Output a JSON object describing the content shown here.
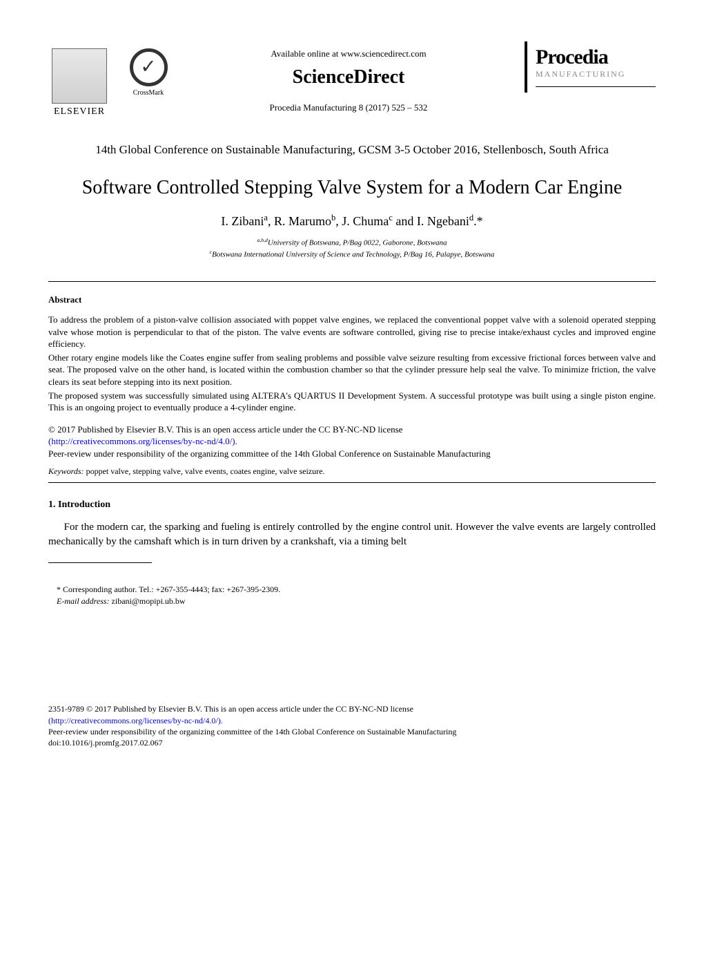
{
  "header": {
    "elsevier_label": "ELSEVIER",
    "crossmark_label": "CrossMark",
    "available_online": "Available online at www.sciencedirect.com",
    "sciencedirect": "ScienceDirect",
    "procedia_ref": "Procedia Manufacturing 8 (2017) 525 – 532",
    "procedia_title": "Procedia",
    "procedia_sub": "MANUFACTURING"
  },
  "conference": "14th Global Conference on Sustainable Manufacturing, GCSM 3-5 October 2016, Stellenbosch, South Africa",
  "title": "Software Controlled Stepping Valve System for a Modern Car Engine",
  "authors_html": "I. Zibani<sup>a</sup>, R. Marumo<sup>b</sup>, J. Chuma<sup>c</sup> and I. Ngebani<sup>d</sup>.*",
  "affiliations": {
    "line1_html": "<sup>a,b,d</sup>University of Botswana, P/Bag 0022, Gaborone, Botswana",
    "line2_html": "<sup>c</sup>Botswana International University of Science and Technology, P/Bag 16, Palapye, Botswana"
  },
  "abstract": {
    "heading": "Abstract",
    "p1": "To address the problem of a piston-valve collision associated with poppet valve engines, we replaced the conventional poppet valve with a solenoid operated stepping valve whose motion is perpendicular to that of the piston. The valve events are software controlled, giving rise to precise intake/exhaust cycles and improved engine efficiency.",
    "p2": "Other rotary engine models like the Coates engine suffer from sealing problems and possible valve seizure resulting from excessive frictional forces between valve and seat. The proposed valve on the other hand, is located within the combustion chamber so that the cylinder pressure help seal the valve. To minimize friction, the valve clears its seat before stepping into its next position.",
    "p3": "The proposed system was successfully simulated using ALTERA's QUARTUS II Development System. A successful prototype was built using a single piston engine. This is an ongoing project to eventually produce a 4-cylinder engine."
  },
  "copyright": {
    "line1": "© 2017 Published by Elsevier B.V. This is an open access article under the CC BY-NC-ND license",
    "license_url": "(http://creativecommons.org/licenses/by-nc-nd/4.0/).",
    "peer_review": "Peer-review under responsibility of the organizing committee of the 14th Global Conference on Sustainable Manufacturing"
  },
  "keywords": {
    "label": "Keywords:",
    "text": " poppet valve, stepping valve, valve events, coates engine, valve seizure."
  },
  "section1": {
    "heading": "1. Introduction",
    "p1": "For the modern car, the sparking and fueling is entirely controlled by the engine control unit. However the valve events are largely controlled mechanically by the camshaft which is in turn driven by a crankshaft, via a timing belt"
  },
  "footnote": {
    "line1": "* Corresponding author. Tel.: +267-355-4443; fax: +267-395-2309.",
    "email_label": "E-mail address:",
    "email": " zibani@mopipi.ub.bw"
  },
  "footer": {
    "line1": "2351-9789 © 2017 Published by Elsevier B.V. This is an open access article under the CC BY-NC-ND license",
    "license_url": "(http://creativecommons.org/licenses/by-nc-nd/4.0/).",
    "peer_review": "Peer-review under responsibility of the organizing committee of the 14th Global Conference on Sustainable Manufacturing",
    "doi": "doi:10.1016/j.promfg.2017.02.067"
  }
}
